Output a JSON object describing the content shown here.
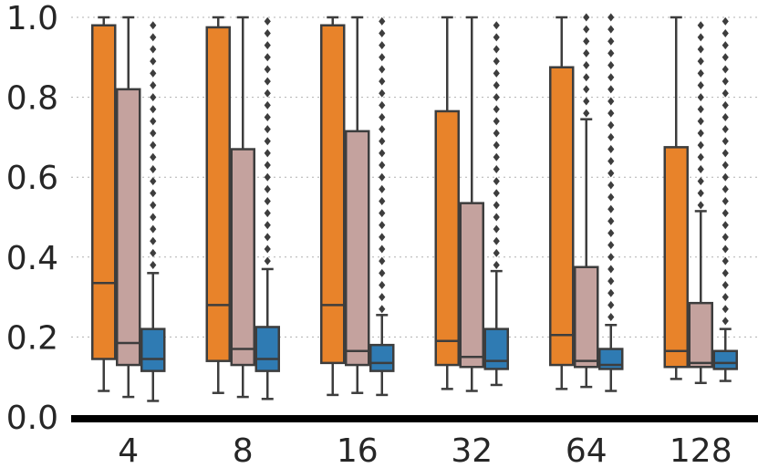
{
  "chart_data": {
    "type": "box",
    "title": "",
    "xlabel": "",
    "ylabel": "",
    "ylim": [
      0.0,
      1.0
    ],
    "y_ticks": [
      0.0,
      0.2,
      0.4,
      0.6,
      0.8,
      1.0
    ],
    "y_tick_labels": [
      "0.0",
      "0.2",
      "0.4",
      "0.6",
      "0.8",
      "1.0"
    ],
    "grid": "horizontal-dotted",
    "categories": [
      "4",
      "8",
      "16",
      "32",
      "64",
      "128"
    ],
    "series_colors": [
      "#e8832a",
      "#c4a29e",
      "#2f7bb3"
    ],
    "series": [
      {
        "color": "#e8832a",
        "boxes": [
          {
            "whislo": 0.065,
            "q1": 0.145,
            "med": 0.335,
            "q3": 0.98,
            "whishi": 1.0,
            "fliers": []
          },
          {
            "whislo": 0.06,
            "q1": 0.14,
            "med": 0.28,
            "q3": 0.975,
            "whishi": 1.0,
            "fliers": []
          },
          {
            "whislo": 0.055,
            "q1": 0.135,
            "med": 0.28,
            "q3": 0.98,
            "whishi": 1.0,
            "fliers": []
          },
          {
            "whislo": 0.07,
            "q1": 0.13,
            "med": 0.19,
            "q3": 0.765,
            "whishi": 1.0,
            "fliers": []
          },
          {
            "whislo": 0.07,
            "q1": 0.13,
            "med": 0.205,
            "q3": 0.875,
            "whishi": 1.0,
            "fliers": []
          },
          {
            "whislo": 0.095,
            "q1": 0.125,
            "med": 0.165,
            "q3": 0.675,
            "whishi": 1.0,
            "fliers": []
          }
        ]
      },
      {
        "color": "#c4a29e",
        "boxes": [
          {
            "whislo": 0.05,
            "q1": 0.13,
            "med": 0.185,
            "q3": 0.82,
            "whishi": 1.0,
            "fliers": []
          },
          {
            "whislo": 0.05,
            "q1": 0.13,
            "med": 0.17,
            "q3": 0.67,
            "whishi": 1.0,
            "fliers": []
          },
          {
            "whislo": 0.06,
            "q1": 0.13,
            "med": 0.165,
            "q3": 0.715,
            "whishi": 1.0,
            "fliers": []
          },
          {
            "whislo": 0.065,
            "q1": 0.125,
            "med": 0.15,
            "q3": 0.535,
            "whishi": 1.0,
            "fliers": []
          },
          {
            "whislo": 0.075,
            "q1": 0.125,
            "med": 0.14,
            "q3": 0.375,
            "whishi": 0.745,
            "fliers": [
              0.76,
              0.79,
              0.82,
              0.85,
              0.88,
              0.91,
              0.94,
              0.97,
              1.0
            ]
          },
          {
            "whislo": 0.085,
            "q1": 0.125,
            "med": 0.135,
            "q3": 0.285,
            "whishi": 0.515,
            "fliers": [
              0.53,
              0.56,
              0.59,
              0.62,
              0.65,
              0.68,
              0.71,
              0.74,
              0.77,
              0.8,
              0.83,
              0.86,
              0.89,
              0.92,
              0.95,
              0.98
            ]
          }
        ]
      },
      {
        "color": "#2f7bb3",
        "boxes": [
          {
            "whislo": 0.04,
            "q1": 0.115,
            "med": 0.145,
            "q3": 0.22,
            "whishi": 0.36,
            "fliers": [
              0.38,
              0.41,
              0.44,
              0.47,
              0.5,
              0.53,
              0.56,
              0.59,
              0.62,
              0.65,
              0.68,
              0.71,
              0.74,
              0.77,
              0.8,
              0.83,
              0.86,
              0.89,
              0.92,
              0.95,
              0.98
            ]
          },
          {
            "whislo": 0.045,
            "q1": 0.115,
            "med": 0.145,
            "q3": 0.225,
            "whishi": 0.37,
            "fliers": [
              0.39,
              0.42,
              0.45,
              0.48,
              0.51,
              0.54,
              0.57,
              0.6,
              0.63,
              0.66,
              0.69,
              0.72,
              0.75,
              0.78,
              0.81,
              0.84,
              0.87,
              0.9,
              0.93,
              0.96,
              0.99
            ]
          },
          {
            "whislo": 0.055,
            "q1": 0.115,
            "med": 0.135,
            "q3": 0.18,
            "whishi": 0.255,
            "fliers": [
              0.27,
              0.3,
              0.33,
              0.36,
              0.39,
              0.42,
              0.45,
              0.48,
              0.51,
              0.54,
              0.57,
              0.6,
              0.63,
              0.66,
              0.69,
              0.72,
              0.75,
              0.78,
              0.81,
              0.84,
              0.87,
              0.9,
              0.93,
              0.96,
              0.99
            ]
          },
          {
            "whislo": 0.08,
            "q1": 0.12,
            "med": 0.14,
            "q3": 0.22,
            "whishi": 0.365,
            "fliers": [
              0.38,
              0.41,
              0.44,
              0.47,
              0.5,
              0.53,
              0.56,
              0.59,
              0.62,
              0.65,
              0.68,
              0.71,
              0.74,
              0.77,
              0.8,
              0.83,
              0.86,
              0.89,
              0.92,
              0.95,
              0.98
            ]
          },
          {
            "whislo": 0.065,
            "q1": 0.12,
            "med": 0.13,
            "q3": 0.17,
            "whishi": 0.23,
            "fliers": [
              0.25,
              0.28,
              0.31,
              0.34,
              0.37,
              0.4,
              0.43,
              0.46,
              0.49,
              0.52,
              0.55,
              0.58,
              0.61,
              0.64,
              0.67,
              0.7,
              0.73,
              0.76,
              0.79,
              0.82,
              0.85,
              0.88,
              0.91,
              0.94,
              0.97,
              1.0
            ]
          },
          {
            "whislo": 0.09,
            "q1": 0.12,
            "med": 0.135,
            "q3": 0.165,
            "whishi": 0.22,
            "fliers": [
              0.24,
              0.27,
              0.3,
              0.33,
              0.36,
              0.39,
              0.42,
              0.45,
              0.48,
              0.51,
              0.54,
              0.57,
              0.6,
              0.63,
              0.66,
              0.69,
              0.72,
              0.75,
              0.78,
              0.81,
              0.84,
              0.87,
              0.9,
              0.93,
              0.96,
              0.99
            ]
          }
        ]
      }
    ]
  }
}
